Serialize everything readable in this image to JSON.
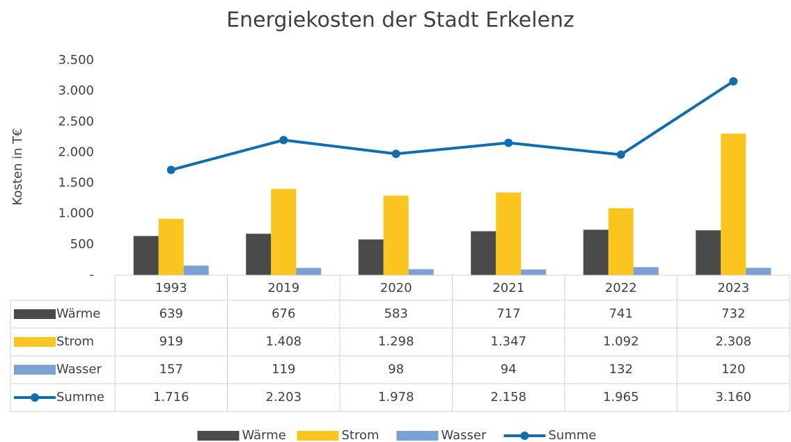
{
  "chart_data": {
    "type": "bar",
    "title": "Energiekosten der Stadt Erkelenz",
    "y_label": "Kosten in T€",
    "categories": [
      "1993",
      "2019",
      "2020",
      "2021",
      "2022",
      "2023"
    ],
    "series": [
      {
        "name": "Wärme",
        "type": "bar",
        "color": "#4a4a4a",
        "values": [
          639,
          676,
          583,
          717,
          741,
          732
        ],
        "value_labels": [
          "639",
          "676",
          "583",
          "717",
          "741",
          "732"
        ]
      },
      {
        "name": "Strom",
        "type": "bar",
        "color": "#fbc520",
        "values": [
          919,
          1408,
          1298,
          1347,
          1092,
          2308
        ],
        "value_labels": [
          "919",
          "1.408",
          "1.298",
          "1.347",
          "1.092",
          "2.308"
        ]
      },
      {
        "name": "Wasser",
        "type": "bar",
        "color": "#7ba0d4",
        "values": [
          157,
          119,
          98,
          94,
          132,
          120
        ],
        "value_labels": [
          "157",
          "119",
          "98",
          "94",
          "132",
          "120"
        ]
      },
      {
        "name": "Summe",
        "type": "line",
        "color": "#0f6db0",
        "values": [
          1716,
          2203,
          1978,
          2158,
          1965,
          3160
        ],
        "value_labels": [
          "1.716",
          "2.203",
          "1.978",
          "2.158",
          "1.965",
          "3.160"
        ]
      }
    ],
    "ylim": [
      0,
      3500
    ],
    "yticks": [
      {
        "value": 0,
        "label": "-"
      },
      500,
      {
        "value": 1000,
        "label": "1.000"
      },
      {
        "value": 1500,
        "label": "1.500"
      },
      {
        "value": 2000,
        "label": "2.000"
      },
      {
        "value": 2500,
        "label": "2.500"
      },
      {
        "value": 3000,
        "label": "3.000"
      },
      {
        "value": 3500,
        "label": "3.500"
      }
    ],
    "data_table": true,
    "legend": "bottom"
  }
}
